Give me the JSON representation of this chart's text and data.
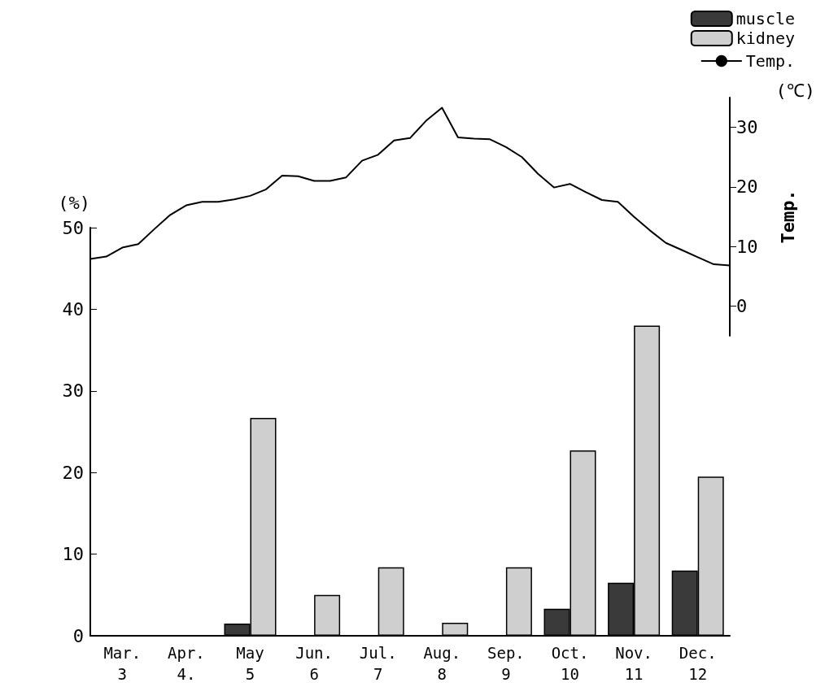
{
  "chart_data": [
    {
      "type": "bar",
      "categories": [
        "Mar.\n3",
        "Apr.\n4.",
        "May\n5",
        "Jun.\n6",
        "Jul.\n7",
        "Aug.\n8",
        "Sep.\n9",
        "Oct.\n10",
        "Nov.\n11",
        "Dec.\n12"
      ],
      "series": [
        {
          "name": "muscle",
          "color": "#3a3a3a",
          "values": [
            null,
            null,
            1.5,
            null,
            null,
            null,
            null,
            3.3,
            6.5,
            8
          ]
        },
        {
          "name": "kidney",
          "color": "#cfcfcf",
          "values": [
            null,
            null,
            26.7,
            5,
            8.4,
            1.6,
            8.4,
            22.7,
            38,
            19.5
          ]
        }
      ],
      "ylabel": "(%)",
      "ylim": [
        0,
        50
      ],
      "yticks": [
        0,
        10,
        20,
        30,
        40,
        50
      ],
      "grid": false,
      "legend": "top right"
    },
    {
      "type": "line",
      "categories": [
        null,
        null,
        null,
        null,
        null,
        null,
        null,
        null,
        null,
        null,
        null,
        null,
        null,
        null,
        null,
        null,
        null,
        null,
        null,
        null,
        null,
        null,
        null,
        null,
        null,
        null,
        null,
        null,
        null,
        null,
        null,
        null,
        null,
        null,
        null,
        null,
        null,
        null,
        null,
        null,
        null
      ],
      "series": [
        {
          "name": "Temp.",
          "color": "#000000",
          "values": [
            7.9,
            8.3,
            9.8,
            10.4,
            12.9,
            15.3,
            16.9,
            17.5,
            17.5,
            17.9,
            18.5,
            19.6,
            21.9,
            21.8,
            21,
            21,
            21.6,
            24.4,
            25.4,
            27.8,
            28.2,
            31.1,
            33.3,
            28.3,
            28.1,
            28,
            26.7,
            25,
            22.2,
            19.9,
            20.5,
            19.1,
            17.8,
            17.5,
            15,
            12.7,
            10.6,
            9.4,
            8.2,
            7,
            6.8
          ]
        }
      ],
      "ylabel": "Temp.",
      "annotations": [
        "(℃)"
      ],
      "ylim": [
        -5,
        35
      ],
      "yticks": [
        0,
        10,
        20,
        30
      ],
      "tick_labels": "y",
      "grid": false,
      "legend": "top right",
      "marker": "none"
    }
  ]
}
